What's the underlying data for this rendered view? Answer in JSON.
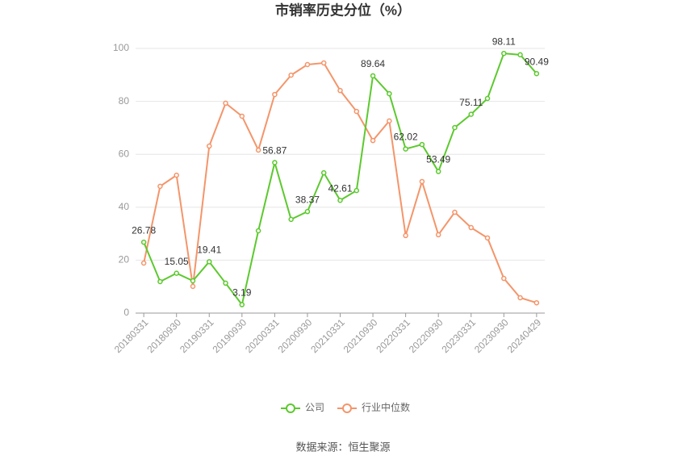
{
  "chart_data": {
    "type": "line",
    "title": "市销率历史分位（%）",
    "categories": [
      "20180331",
      null,
      "20180930",
      null,
      "20190331",
      null,
      "20190930",
      null,
      "20200331",
      null,
      "20200930",
      null,
      "20210331",
      null,
      "20210930",
      null,
      "20220331",
      null,
      "20220930",
      null,
      "20230331",
      null,
      "20230930",
      null,
      "20240429"
    ],
    "series": [
      {
        "name": "公司",
        "color": "#5cc92e",
        "values": [
          26.78,
          11.9,
          15.05,
          12.2,
          19.41,
          11.3,
          3.19,
          31.1,
          56.87,
          35.4,
          38.37,
          53.0,
          42.61,
          46.3,
          89.64,
          82.9,
          62.02,
          63.7,
          53.49,
          70.1,
          75.11,
          81.1,
          98.11,
          97.6,
          90.49
        ]
      },
      {
        "name": "行业中位数",
        "color": "#f4956a",
        "values": [
          18.9,
          47.9,
          52.1,
          10.1,
          63.1,
          79.3,
          74.4,
          61.6,
          82.6,
          89.9,
          93.9,
          94.5,
          84.1,
          76.2,
          65.2,
          72.6,
          29.3,
          49.7,
          29.6,
          38.1,
          32.3,
          28.4,
          13.1,
          5.8,
          3.9
        ]
      }
    ],
    "data_labels_series": 0,
    "data_labels_at": [
      0,
      2,
      4,
      6,
      8,
      10,
      12,
      14,
      16,
      18,
      20,
      22,
      24
    ],
    "ylim": [
      0,
      100
    ],
    "yticks": [
      0,
      20,
      40,
      60,
      80,
      100
    ],
    "grid": true,
    "legend": "bottom",
    "source": "数据来源：恒生聚源"
  }
}
